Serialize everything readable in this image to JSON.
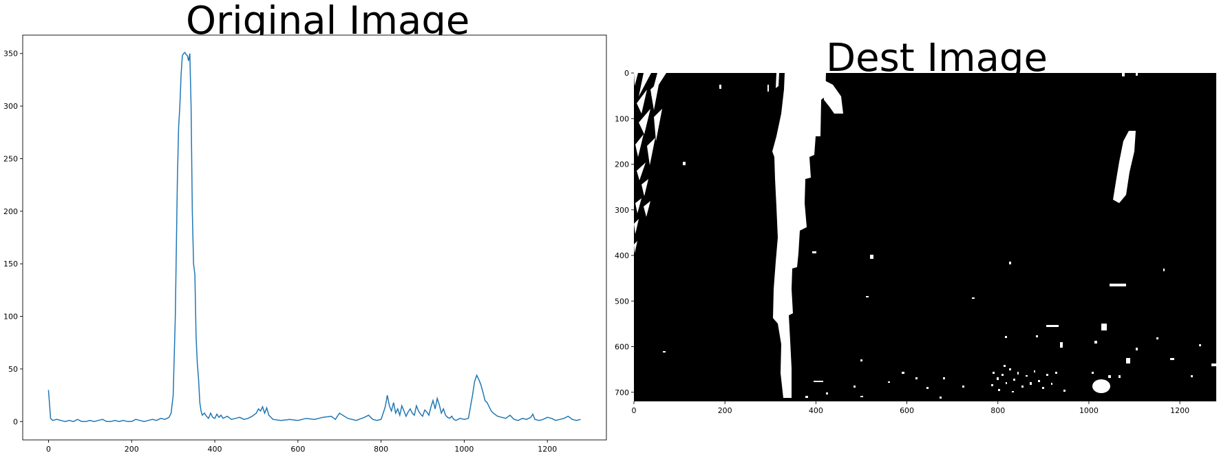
{
  "panels": {
    "left_title": "Original Image",
    "right_title": "Dest Image"
  },
  "chart_data": [
    {
      "type": "line",
      "title": "Original Image",
      "xlabel": "",
      "ylabel": "",
      "xlim": [
        -62,
        1342
      ],
      "ylim": [
        -17.5,
        367.5
      ],
      "xticks": [
        0,
        200,
        400,
        600,
        800,
        1000,
        1200
      ],
      "yticks": [
        0,
        50,
        100,
        150,
        200,
        250,
        300,
        350
      ],
      "grid": false,
      "legend": "none",
      "color": "#1f77b4",
      "series": [
        {
          "x": [
            0,
            5,
            10,
            20,
            30,
            40,
            50,
            60,
            70,
            80,
            90,
            100,
            110,
            120,
            130,
            140,
            150,
            160,
            170,
            180,
            190,
            200,
            210,
            220,
            230,
            240,
            250,
            260,
            270,
            280,
            290,
            295,
            300,
            305,
            310,
            313,
            316,
            319,
            322,
            325,
            328,
            331,
            334,
            337,
            340,
            343,
            346,
            349,
            352,
            355,
            358,
            361,
            364,
            367,
            370,
            375,
            380,
            385,
            390,
            395,
            400,
            405,
            410,
            415,
            420,
            430,
            440,
            450,
            460,
            470,
            480,
            490,
            500,
            505,
            510,
            515,
            520,
            525,
            530,
            540,
            560,
            580,
            600,
            620,
            640,
            660,
            680,
            690,
            700,
            720,
            740,
            760,
            770,
            780,
            790,
            800,
            805,
            810,
            815,
            820,
            825,
            830,
            835,
            840,
            845,
            850,
            855,
            860,
            865,
            870,
            875,
            880,
            885,
            890,
            895,
            900,
            905,
            910,
            915,
            920,
            925,
            930,
            935,
            940,
            945,
            950,
            955,
            960,
            965,
            970,
            975,
            980,
            990,
            1000,
            1010,
            1020,
            1025,
            1030,
            1035,
            1040,
            1045,
            1050,
            1055,
            1060,
            1065,
            1070,
            1080,
            1090,
            1100,
            1110,
            1120,
            1130,
            1140,
            1150,
            1160,
            1165,
            1170,
            1180,
            1190,
            1200,
            1210,
            1220,
            1230,
            1240,
            1250,
            1260,
            1270,
            1280
          ],
          "y": [
            30,
            3,
            1,
            2,
            1,
            0,
            1,
            0,
            2,
            0,
            0,
            1,
            0,
            1,
            2,
            0,
            0,
            1,
            0,
            1,
            0,
            0,
            2,
            1,
            0,
            1,
            2,
            1,
            3,
            2,
            4,
            8,
            25,
            100,
            230,
            280,
            300,
            330,
            348,
            350,
            351,
            349,
            348,
            343,
            350,
            300,
            200,
            150,
            140,
            80,
            55,
            40,
            18,
            10,
            6,
            8,
            5,
            3,
            8,
            4,
            3,
            7,
            4,
            6,
            3,
            5,
            2,
            3,
            4,
            2,
            3,
            5,
            8,
            12,
            10,
            14,
            8,
            13,
            6,
            2,
            1,
            2,
            1,
            3,
            2,
            4,
            5,
            2,
            8,
            3,
            1,
            4,
            6,
            2,
            1,
            2,
            8,
            14,
            25,
            15,
            10,
            18,
            8,
            12,
            6,
            15,
            10,
            5,
            9,
            12,
            8,
            6,
            15,
            10,
            7,
            5,
            11,
            9,
            6,
            14,
            20,
            12,
            22,
            16,
            8,
            12,
            6,
            4,
            3,
            5,
            2,
            1,
            3,
            2,
            3,
            25,
            38,
            44,
            40,
            35,
            28,
            20,
            18,
            14,
            10,
            8,
            5,
            4,
            3,
            6,
            2,
            1,
            3,
            2,
            4,
            7,
            2,
            1,
            2,
            4,
            3,
            1,
            2,
            3,
            5,
            2,
            1,
            2
          ]
        }
      ]
    },
    {
      "type": "heatmap",
      "title": "Dest Image",
      "xlabel": "",
      "ylabel": "",
      "xlim": [
        0,
        1280
      ],
      "ylim": [
        720,
        0
      ],
      "xticks": [
        0,
        200,
        400,
        600,
        800,
        1000,
        1200
      ],
      "yticks": [
        0,
        100,
        200,
        300,
        400,
        500,
        600,
        700
      ],
      "colormap": "binary: black background, white pixels",
      "grid": false
    }
  ]
}
